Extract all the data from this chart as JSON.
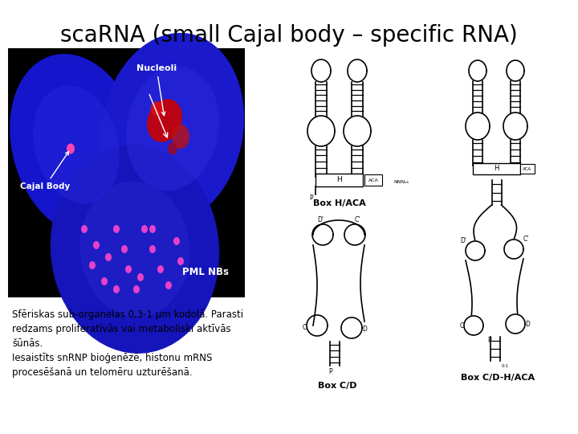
{
  "title": "scaRNA (small Cajal body – specific RNA)",
  "title_fontsize": 20,
  "bg_color": "#ffffff",
  "text_lines": [
    "Sfēriskas sub-organelas 0,3-1 μm kodolā. Parasti",
    "redzams proliferatīvās vai metaboliski aktīvās",
    "šūnās.",
    "Iesaistīts snRNP bioģenēzē, histonu mRNS",
    "procesēšanā un telomēru uzturēšanā."
  ],
  "text_fontsize": 8.5
}
